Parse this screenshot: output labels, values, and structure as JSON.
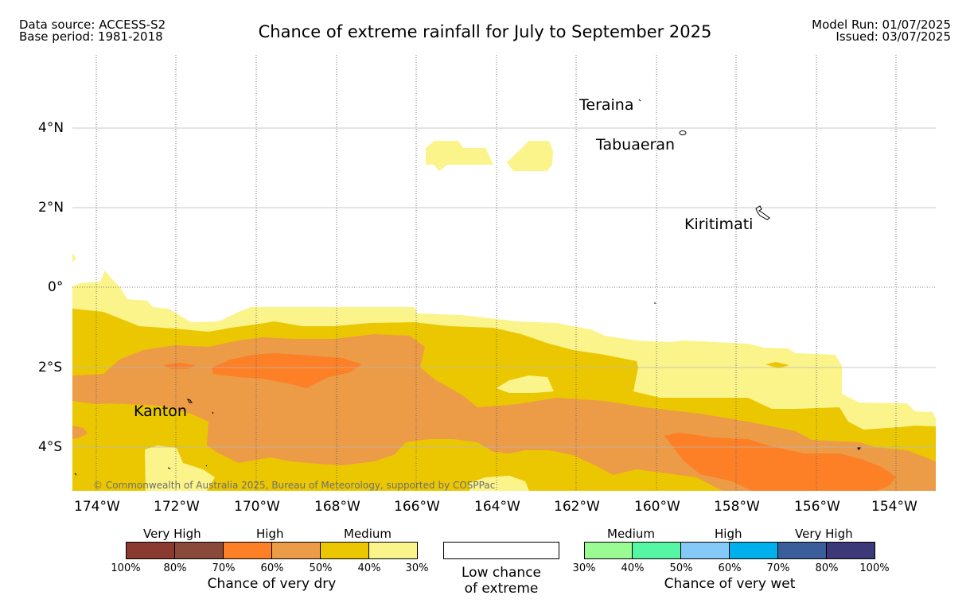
{
  "header": {
    "data_source": "Data source: ACCESS-S2",
    "base_period": "Base period: 1981-2018",
    "title": "Chance of extreme rainfall for July to September 2025",
    "model_run": "Model Run: 01/07/2025",
    "issued": "Issued: 03/07/2025"
  },
  "map": {
    "lat_labels": [
      "4°N",
      "2°N",
      "0°",
      "2°S",
      "4°S"
    ],
    "lon_labels": [
      "174°W",
      "172°W",
      "170°W",
      "168°W",
      "166°W",
      "164°W",
      "162°W",
      "160°W",
      "158°W",
      "156°W",
      "154°W"
    ],
    "places": [
      "Teraina",
      "Tabuaeran",
      "Kiritimati",
      "Kanton"
    ],
    "copyright": "© Commonwealth of Australia 2025, Bureau of Meteorology, supported by COSPPac",
    "colors": {
      "dry_30_40": "#fbf48b",
      "dry_40_50": "#ebc702",
      "dry_50_60": "#ec9b47",
      "dry_60_70": "#fd7f26"
    }
  },
  "legend": {
    "dry": {
      "labels": [
        "Very High",
        "High",
        "Medium"
      ],
      "ticks": [
        "100%",
        "80%",
        "70%",
        "60%",
        "50%",
        "40%",
        "30%"
      ],
      "colors": [
        "#8b3a2f",
        "#8a4a3a",
        "#fd7f26",
        "#ec9b47",
        "#ebc702",
        "#fbf48b"
      ],
      "caption": "Chance of very dry"
    },
    "low": {
      "line1": "Low chance",
      "line2": "of extreme"
    },
    "wet": {
      "labels": [
        "Medium",
        "High",
        "Very High"
      ],
      "ticks": [
        "30%",
        "40%",
        "50%",
        "60%",
        "70%",
        "80%",
        "100%"
      ],
      "colors": [
        "#9bfb93",
        "#56f6a5",
        "#84c9f7",
        "#00b0ec",
        "#3b5e9b",
        "#3d3877"
      ],
      "caption": "Chance of very wet"
    }
  }
}
